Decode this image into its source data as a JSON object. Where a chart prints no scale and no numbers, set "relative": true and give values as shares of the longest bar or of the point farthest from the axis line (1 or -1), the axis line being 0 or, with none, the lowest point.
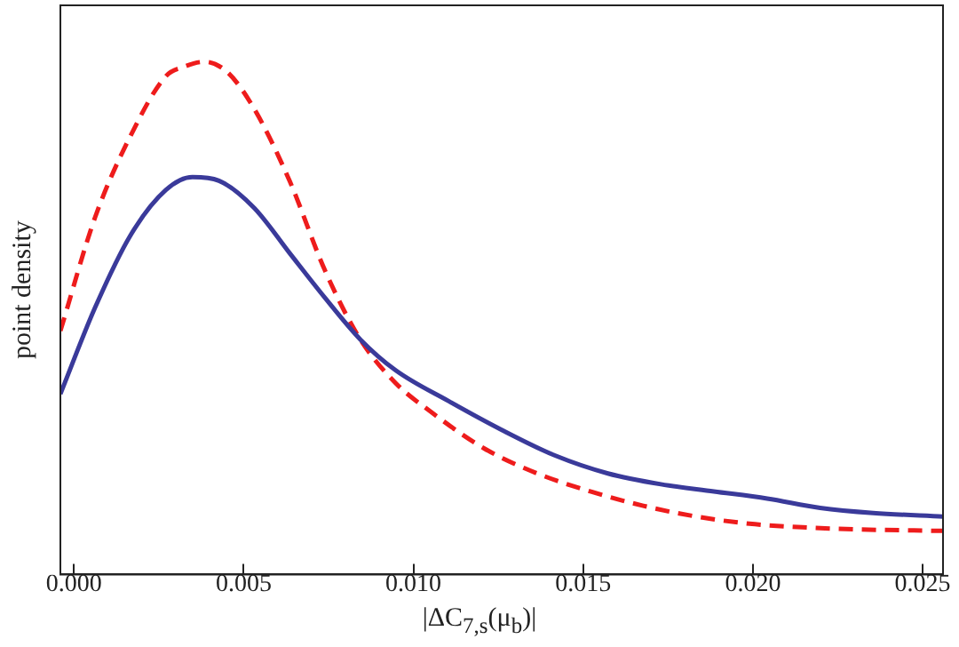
{
  "chart_data": {
    "type": "line",
    "relative": true,
    "xlabel": "|ΔC$_{7,s}$(μ$_{b}$)|",
    "ylabel": "point density",
    "xlim": [
      -0.0004,
      0.0256
    ],
    "xticks": [
      {
        "value": 0,
        "label": "0.000"
      },
      {
        "value": 0.005,
        "label": "0.005"
      },
      {
        "value": 0.01,
        "label": "0.010"
      },
      {
        "value": 0.015,
        "label": "0.015"
      },
      {
        "value": 0.02,
        "label": "0.020"
      },
      {
        "value": 0.025,
        "label": "0.025"
      }
    ],
    "grid": false,
    "legend": false,
    "marker": "none",
    "series": [
      {
        "color": "#3a3a9a",
        "line_style": "solid",
        "x": [
          -0.0004,
          0.000625,
          0.00167,
          0.00271,
          0.00349,
          0.00427,
          0.00531,
          0.00635,
          0.0074,
          0.00844,
          0.00948,
          0.01104,
          0.0126,
          0.01417,
          0.01573,
          0.01729,
          0.01885,
          0.02042,
          0.02198,
          0.02354,
          0.0256
        ],
        "values": [
          0.352,
          0.521,
          0.662,
          0.75,
          0.775,
          0.768,
          0.715,
          0.627,
          0.539,
          0.458,
          0.398,
          0.338,
          0.282,
          0.232,
          0.197,
          0.176,
          0.162,
          0.148,
          0.13,
          0.12,
          0.113
        ]
      },
      {
        "color": "#ee1c1c",
        "line_style": "dashed",
        "x": [
          -0.0004,
          0.000625,
          0.00167,
          0.00271,
          0.00323,
          0.00385,
          0.00453,
          0.00531,
          0.00635,
          0.0074,
          0.00844,
          0.00948,
          0.01052,
          0.01208,
          0.01365,
          0.01521,
          0.01677,
          0.01833,
          0.0199,
          0.02146,
          0.02302,
          0.0256
        ],
        "values": [
          0.475,
          0.697,
          0.856,
          0.972,
          0.99,
          1,
          0.979,
          0.908,
          0.768,
          0.592,
          0.458,
          0.373,
          0.317,
          0.246,
          0.197,
          0.162,
          0.134,
          0.113,
          0.099,
          0.092,
          0.088,
          0.085
        ]
      }
    ]
  }
}
